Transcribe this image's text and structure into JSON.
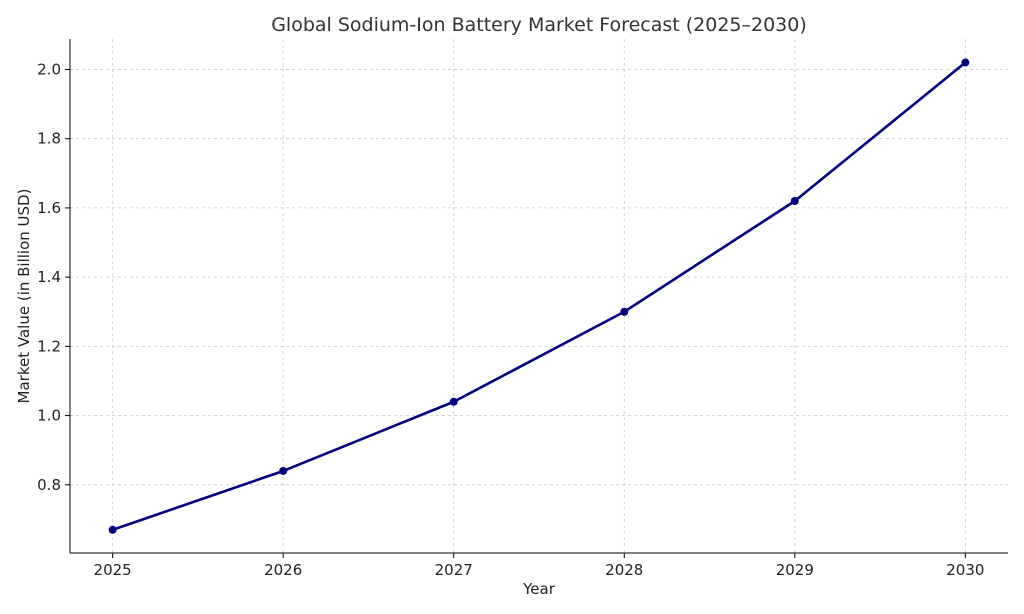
{
  "chart_data": {
    "type": "line",
    "title": "Global Sodium-Ion Battery Market Forecast (2025–2030)",
    "xlabel": "Year",
    "ylabel": "Market Value (in Billion USD)",
    "x": [
      2025,
      2026,
      2027,
      2028,
      2029,
      2030
    ],
    "x_tick_labels": [
      "2025",
      "2026",
      "2027",
      "2028",
      "2029",
      "2030"
    ],
    "y_ticks": [
      0.8,
      1.0,
      1.2,
      1.4,
      1.6,
      1.8,
      2.0
    ],
    "y_tick_labels": [
      "0.8",
      "1.0",
      "1.2",
      "1.4",
      "1.6",
      "1.8",
      "2.0"
    ],
    "xlim": [
      2024.75,
      2030.25
    ],
    "ylim": [
      0.603,
      2.088
    ],
    "grid": true,
    "series": [
      {
        "values": [
          0.67,
          0.84,
          1.04,
          1.3,
          1.62,
          2.02
        ],
        "color": "#000080",
        "marker": "circle"
      }
    ]
  }
}
